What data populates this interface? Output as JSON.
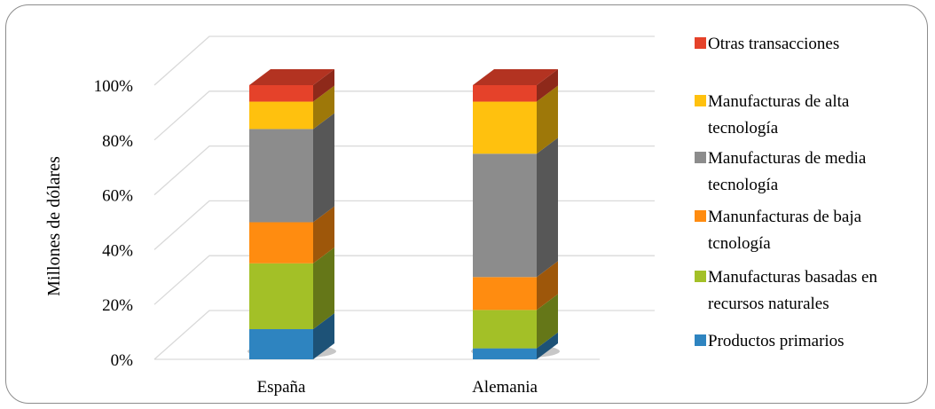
{
  "chart_data": {
    "type": "bar",
    "stacked": true,
    "percent": true,
    "three_d": true,
    "title": "",
    "xlabel": "",
    "ylabel": "Millones de dólares",
    "ylim": [
      0,
      100
    ],
    "yticks": [
      "0%",
      "20%",
      "40%",
      "60%",
      "80%",
      "100%"
    ],
    "categories": [
      "España",
      "Alemania"
    ],
    "grid": true,
    "legend_position": "right",
    "series": [
      {
        "name": "Productos primarios",
        "color": "#2e84c0",
        "values": [
          11,
          4
        ]
      },
      {
        "name": "Manufacturas basadas en recursos naturales",
        "color": "#a3c027",
        "values": [
          24,
          14
        ]
      },
      {
        "name": "Manunfacturas de baja tcnología",
        "color": "#ff8c10",
        "values": [
          15,
          12
        ]
      },
      {
        "name": "Manufacturas de media tecnología",
        "color": "#8c8c8c",
        "values": [
          34,
          45
        ]
      },
      {
        "name": "Manufacturas de alta tecnología",
        "color": "#ffc10e",
        "values": [
          10,
          19
        ]
      },
      {
        "name": "Otras transacciones",
        "color": "#e5422a",
        "values": [
          6,
          6
        ]
      }
    ],
    "legend_order": [
      "Otras transacciones",
      "Manufacturas de alta tecnología",
      "Manufacturas de media tecnología",
      "Manunfacturas de baja tcnología",
      "Manufacturas basadas en recursos naturales",
      "Productos primarios"
    ],
    "legend_lines": [
      [
        "Otras transacciones"
      ],
      [
        "Manufacturas de alta",
        "tecnología"
      ],
      [
        "Manufacturas de media",
        "tecnología"
      ],
      [
        "Manunfacturas de baja",
        "tcnología"
      ],
      [
        "Manufacturas basadas en",
        "recursos naturales"
      ],
      [
        "Productos primarios"
      ]
    ]
  }
}
